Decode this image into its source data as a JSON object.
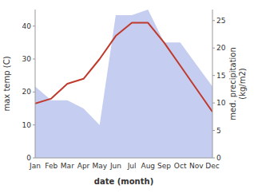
{
  "chart_data": {
    "type": "line",
    "categories": [
      "Jan",
      "Feb",
      "Mar",
      "Apr",
      "May",
      "Jun",
      "Jul",
      "Aug",
      "Sep",
      "Oct",
      "Nov",
      "Dec"
    ],
    "xlabel": "date (month)",
    "ylabel": "max temp (C)",
    "y2label": "med. precipitation\n(kg/m2)",
    "ylim": [
      0,
      45
    ],
    "yticks": [
      0,
      10,
      20,
      30,
      40
    ],
    "y2lim": [
      0,
      27
    ],
    "y2ticks": [
      0,
      5,
      10,
      15,
      20,
      25
    ],
    "grid": false,
    "series": [
      {
        "type": "area",
        "axis": "y2",
        "color": "#c5cdf0",
        "values": [
          13.0,
          10.5,
          10.5,
          9.0,
          6.0,
          26.0,
          26.0,
          27.0,
          21.0,
          21.0,
          17.0,
          13.0
        ]
      },
      {
        "type": "line",
        "color": "#c0392b",
        "values": [
          16.5,
          18.0,
          22.5,
          24.0,
          30.0,
          37.0,
          41.0,
          41.0,
          35.0,
          28.0,
          21.0,
          14.0
        ]
      }
    ]
  }
}
